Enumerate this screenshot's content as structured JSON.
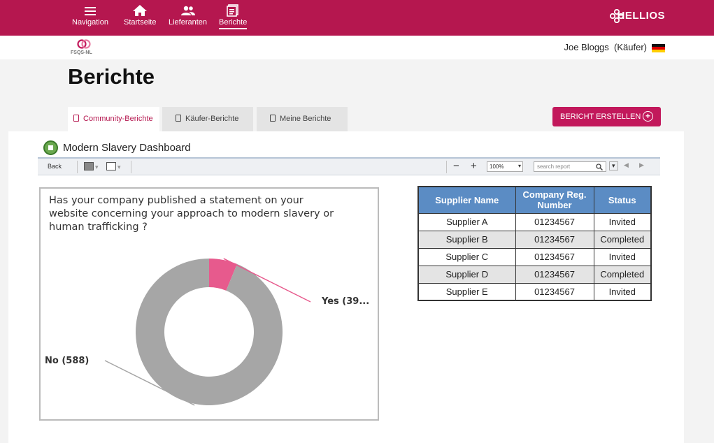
{
  "nav": {
    "items": [
      {
        "label": "Navigation",
        "icon": "menu-icon"
      },
      {
        "label": "Startseite",
        "icon": "home-icon"
      },
      {
        "label": "Lieferanten",
        "icon": "people-icon"
      },
      {
        "label": "Berichte",
        "icon": "report-icon",
        "active": true
      }
    ],
    "brand": "HELLIOS"
  },
  "header": {
    "logo_text": "FSQS-NL",
    "user_name": "Joe Bloggs",
    "user_role": "(Käufer)"
  },
  "page": {
    "title": "Berichte",
    "tabs": [
      {
        "label": "Community-Berichte",
        "active": true
      },
      {
        "label": "Käufer-Berichte"
      },
      {
        "label": "Meine Berichte"
      }
    ],
    "create_button": "BERICHT ERSTELLEN"
  },
  "report": {
    "title": "Modern Slavery Dashboard",
    "toolbar": {
      "back": "Back",
      "zoom": "100%",
      "search_placeholder": "search report"
    },
    "question": "Has your company published a statement on your website concerning your approach to modern slavery or human trafficking ?",
    "table": {
      "headers": [
        "Supplier Name",
        "Company Reg. Number",
        "Status"
      ],
      "rows": [
        [
          "Supplier A",
          "01234567",
          "Invited"
        ],
        [
          "Supplier B",
          "01234567",
          "Completed"
        ],
        [
          "Supplier C",
          "01234567",
          "Invited"
        ],
        [
          "Supplier D",
          "01234567",
          "Completed"
        ],
        [
          "Supplier E",
          "01234567",
          "Invited"
        ]
      ]
    }
  },
  "chart_data": {
    "type": "pie",
    "donut": true,
    "labels": [
      "Yes (39...",
      "No (588)"
    ],
    "values": [
      39,
      588
    ],
    "colors": [
      "#e75a8d",
      "#a6a6a6"
    ]
  },
  "colors": {
    "brand": "#b5174f",
    "button": "#c2185b",
    "table_header": "#5b8cc4"
  }
}
